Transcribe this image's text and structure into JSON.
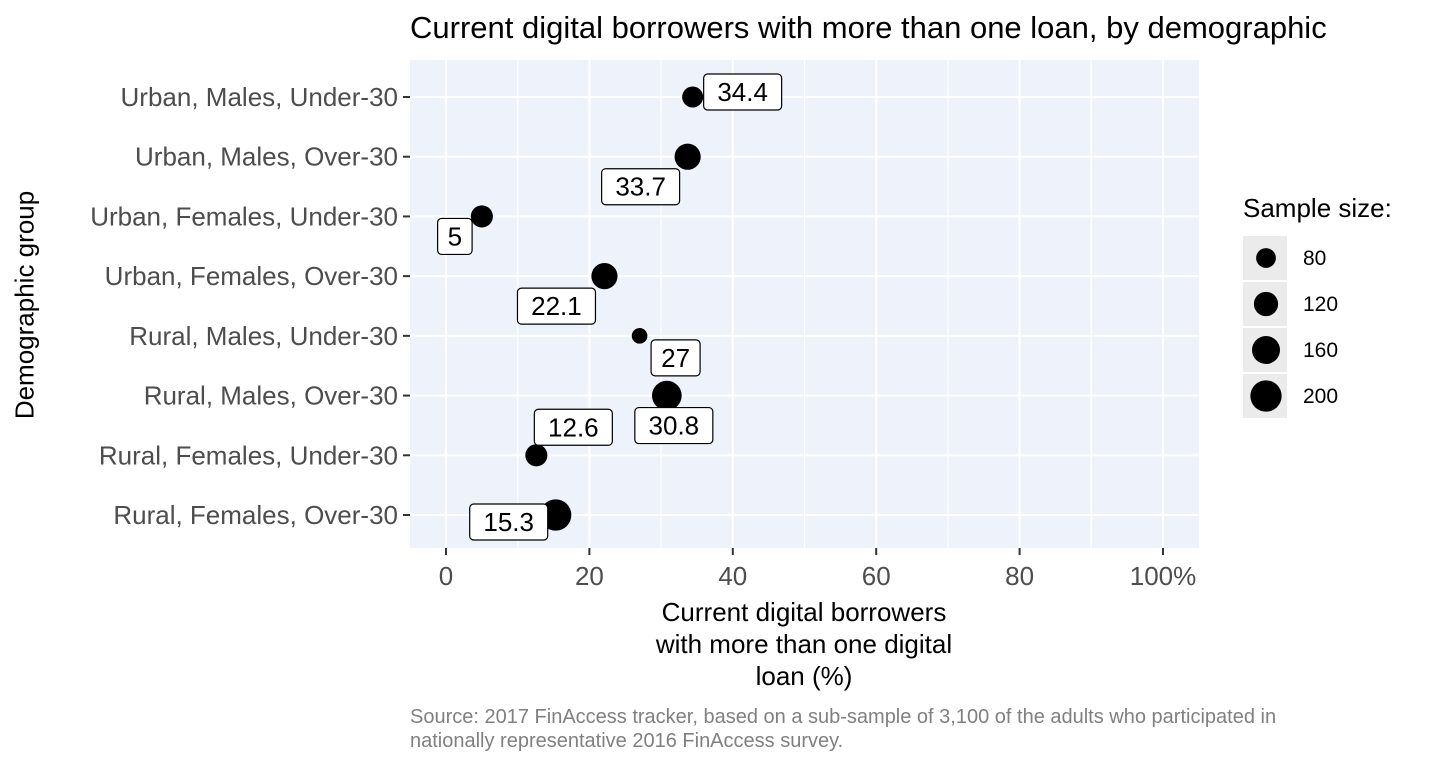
{
  "chart_data": {
    "type": "scatter",
    "title": "Current digital borrowers with more than one loan, by demographic",
    "xlabel": "Current digital borrowers with more than one digital loan (%)",
    "xlabel_lines": [
      "Current digital borrowers",
      "with more than one digital",
      "loan (%)"
    ],
    "ylabel": "Demographic group",
    "xlim": [
      -5,
      105
    ],
    "x_ticks": [
      0,
      20,
      40,
      60,
      80,
      100
    ],
    "x_tick_labels": [
      "0",
      "20",
      "40",
      "60",
      "80",
      "100%"
    ],
    "categories": [
      "Urban, Males, Under-30",
      "Urban, Males, Over-30",
      "Urban, Females, Under-30",
      "Urban, Females, Over-30",
      "Rural, Males, Under-30",
      "Rural, Males, Over-30",
      "Rural, Females, Under-30",
      "Rural, Females, Over-30"
    ],
    "values": [
      34.4,
      33.7,
      5,
      22.1,
      27,
      30.8,
      12.6,
      15.3
    ],
    "value_labels": [
      "34.4",
      "33.7",
      "5",
      "22.1",
      "27",
      "30.8",
      "12.6",
      "15.3"
    ],
    "sample_sizes": [
      90,
      140,
      100,
      140,
      50,
      180,
      100,
      200
    ],
    "size_legend": {
      "title": "Sample size:",
      "values": [
        80,
        120,
        160,
        200
      ],
      "labels": [
        "80",
        "120",
        "160",
        "200"
      ]
    },
    "grid": true,
    "legend_position": "right",
    "colors": {
      "panel": "#eef3fb",
      "grid": "#ffffff",
      "point": "#000000",
      "axis_text": "#4d4d4d"
    },
    "source": "Source: 2017 FinAccess tracker, based on a sub-sample of 3,100 of the adults who participated in nationally representative 2016 FinAccess survey."
  }
}
